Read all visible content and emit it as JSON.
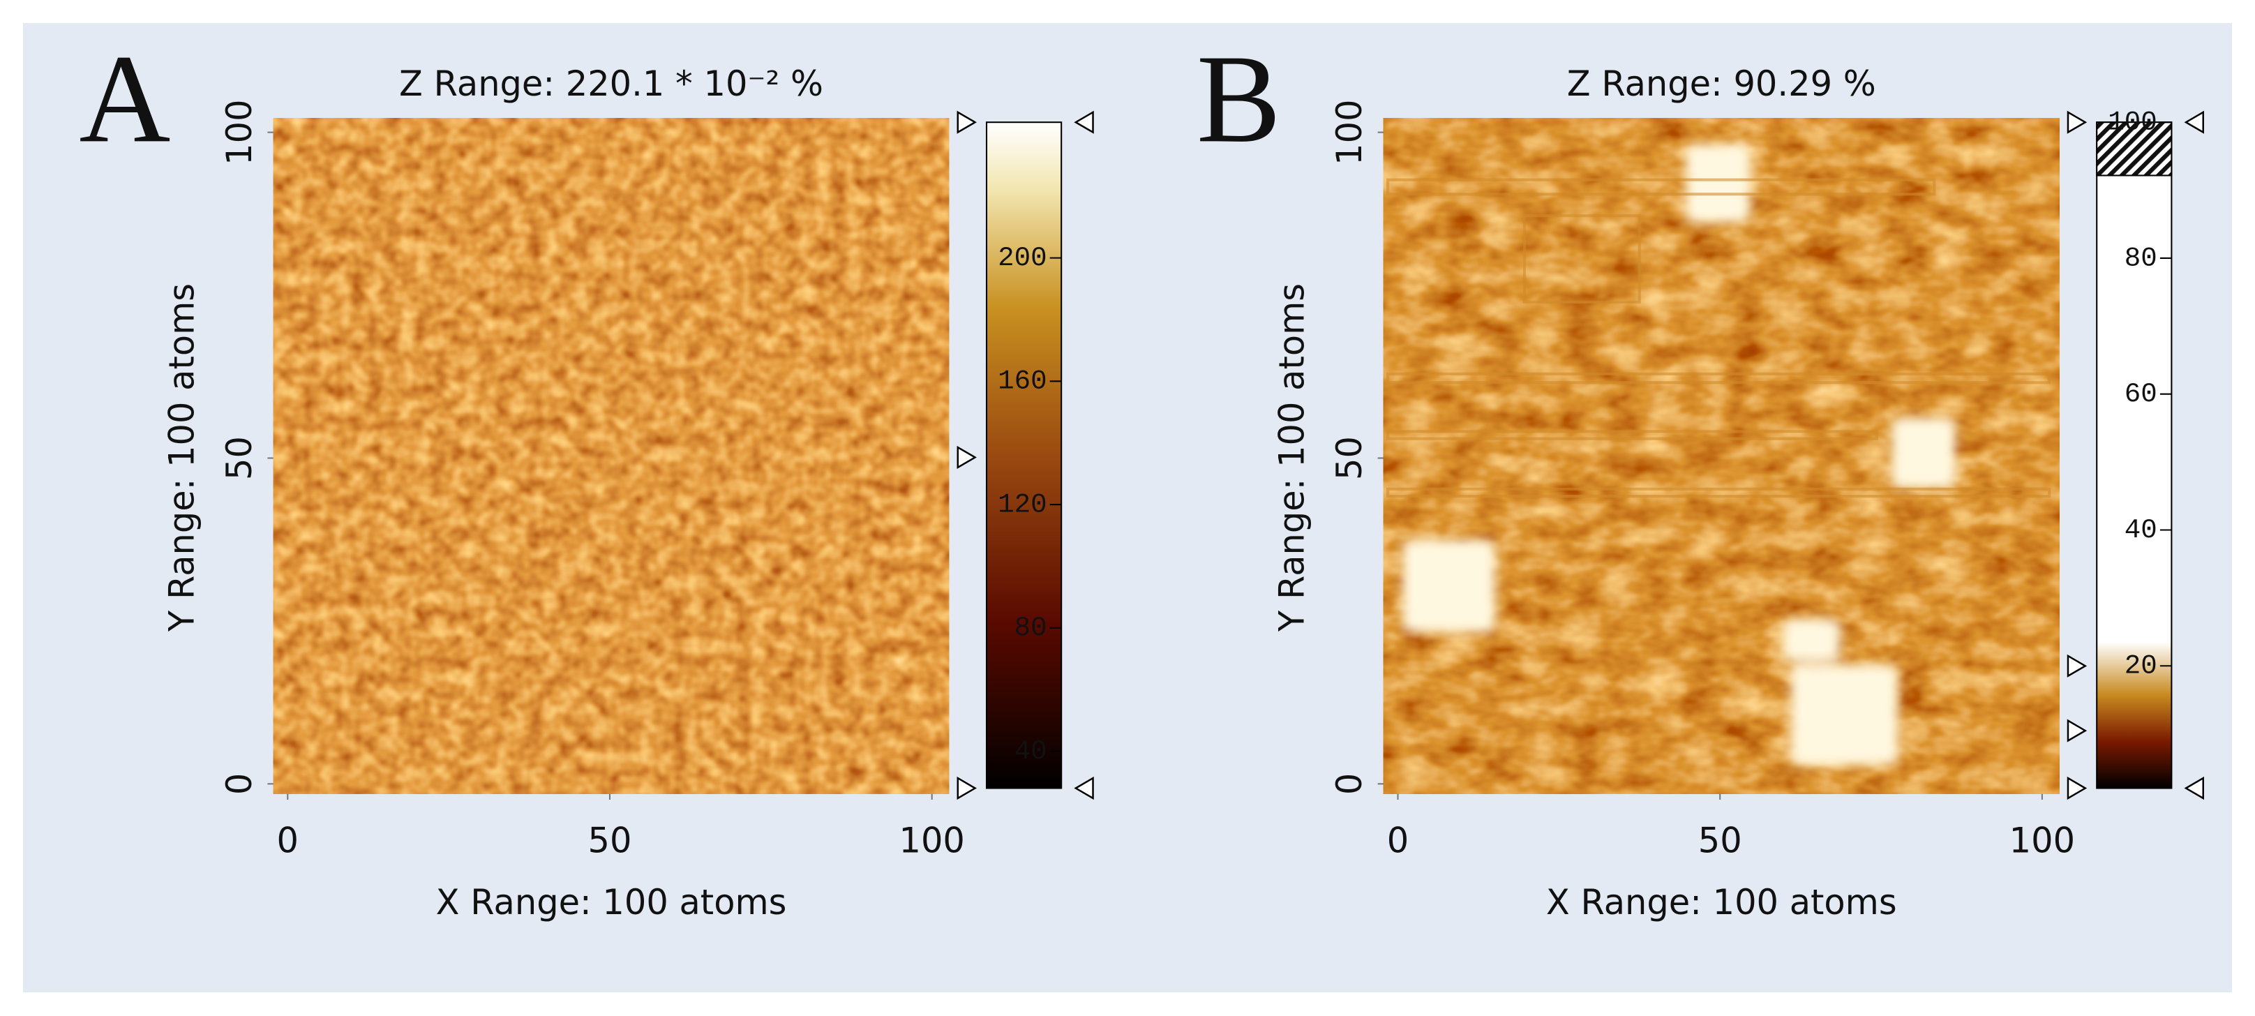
{
  "chart_data": [
    {
      "type": "heatmap",
      "panel": "A",
      "title": "Z Range:  220.1 * 10⁻² %",
      "xlabel": "X Range: 100 atoms",
      "ylabel": "Y Range: 100 atoms",
      "xlim": [
        0,
        100
      ],
      "xticks": [
        0,
        50,
        100
      ],
      "ylim": [
        0,
        100
      ],
      "yticks": [
        0,
        50,
        100
      ],
      "clim": [
        28,
        244
      ],
      "cticks": [
        40,
        80,
        120,
        160,
        200
      ]
    },
    {
      "type": "heatmap",
      "panel": "B",
      "title": "Z Range:  90.29 %",
      "xlabel": "X Range: 100 atoms",
      "ylabel": "Y Range: 100 atoms",
      "xlim": [
        0,
        100
      ],
      "xticks": [
        0,
        50,
        100
      ],
      "ylim": [
        0,
        100
      ],
      "yticks": [
        0,
        50,
        100
      ],
      "clim": [
        2,
        100
      ],
      "cticks": [
        20,
        40,
        60,
        80,
        100
      ]
    }
  ]
}
